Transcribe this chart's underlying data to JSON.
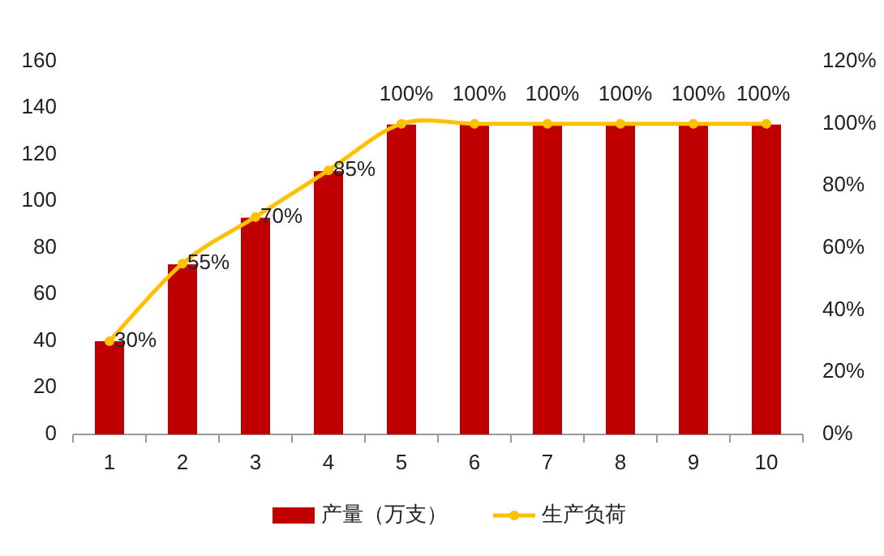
{
  "chart_data": {
    "type": "bar",
    "categories": [
      "1",
      "2",
      "3",
      "4",
      "5",
      "6",
      "7",
      "8",
      "9",
      "10"
    ],
    "series": [
      {
        "name": "产量（万支）",
        "color": "#c00000",
        "values": [
          40,
          73,
          93,
          113,
          133,
          133,
          133,
          133,
          133,
          133
        ]
      },
      {
        "name": "生产负荷",
        "type": "line",
        "axis": "y2",
        "color": "#ffc000",
        "marker": "circle",
        "values": [
          30,
          55,
          70,
          85,
          100,
          100,
          100,
          100,
          100,
          100
        ],
        "value_labels": [
          "30%",
          "55%",
          "70%",
          "85%",
          "100%",
          "100%",
          "100%",
          "100%",
          "100%",
          "100%"
        ]
      }
    ],
    "ylim": [
      0,
      160
    ],
    "yticks": [
      0,
      20,
      40,
      60,
      80,
      100,
      120,
      140,
      160
    ],
    "y2lim": [
      0,
      120
    ],
    "y2ticks": [
      {
        "value": 0,
        "label": "0%"
      },
      {
        "value": 20,
        "label": "20%"
      },
      {
        "value": 40,
        "label": "40%"
      },
      {
        "value": 60,
        "label": "60%"
      },
      {
        "value": 80,
        "label": "80%"
      },
      {
        "value": 100,
        "label": "100%"
      },
      {
        "value": 120,
        "label": "120%"
      }
    ],
    "legend": "bottom",
    "grid": false
  }
}
